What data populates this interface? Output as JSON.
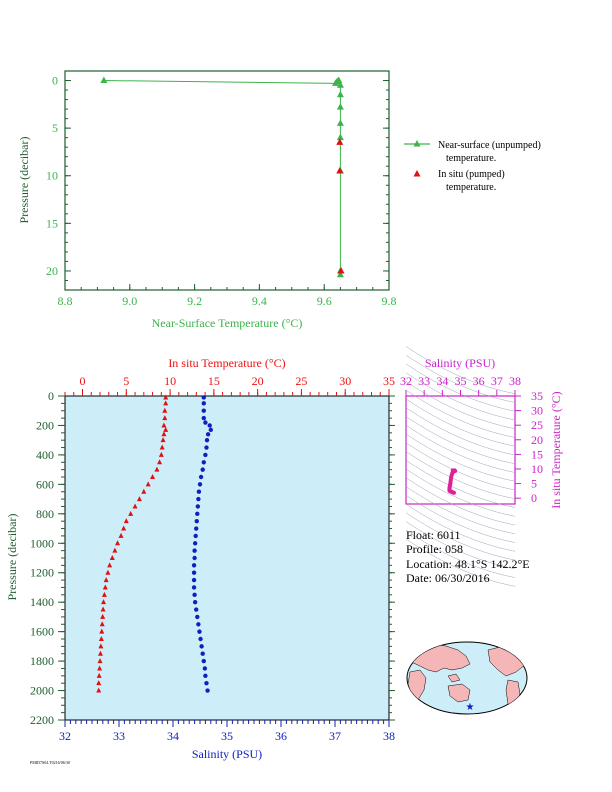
{
  "top_chart": {
    "xlabel": "Near-Surface Temperature (°C)",
    "ylabel": "Pressure (decibar)",
    "xticks": [
      "8.8",
      "9.0",
      "9.2",
      "9.4",
      "9.6",
      "9.8"
    ],
    "yticks": [
      "0",
      "5",
      "10",
      "15",
      "20"
    ],
    "legend": {
      "item1_line1": "Near-surface (unpumped)",
      "item1_line2": "temperature.",
      "item2_line1": "In situ (pumped)",
      "item2_line2": "temperature."
    }
  },
  "bottom_chart": {
    "top_xlabel": "In situ Temperature (°C)",
    "top_xticks": [
      "0",
      "5",
      "10",
      "15",
      "20",
      "25",
      "30",
      "35"
    ],
    "xlabel": "Salinity (PSU)",
    "xticks": [
      "32",
      "33",
      "34",
      "35",
      "36",
      "37",
      "38"
    ],
    "ylabel": "Pressure (decibar)",
    "yticks": [
      "0",
      "200",
      "400",
      "600",
      "800",
      "1000",
      "1200",
      "1400",
      "1600",
      "1800",
      "2000",
      "2200"
    ]
  },
  "ts_chart": {
    "xlabel": "Salinity (PSU)",
    "xticks": [
      "32",
      "33",
      "34",
      "35",
      "36",
      "37",
      "38"
    ],
    "ylabel": "In situ Temperature (°C)",
    "yticks": [
      "0",
      "5",
      "10",
      "15",
      "20",
      "25",
      "30",
      "35"
    ]
  },
  "info": {
    "float": "Float:  6011",
    "profile": "Profile:  058",
    "location": "Location:  48.1°S  142.2°E",
    "date": "Date:  06/30/2016"
  },
  "footer_code": "PMID7S04.T0216/06/30",
  "colors": {
    "near_surface": "#3cb44b",
    "in_situ_temp": "#e11111",
    "salinity": "#1020c0",
    "ts_curve": "#dd2299",
    "bottom_bg": "#cdeef8",
    "ts_axis": "#cc22cc"
  },
  "chart_data": [
    {
      "type": "line",
      "name": "near-surface temperature profile",
      "series": [
        {
          "name": "Near-surface (unpumped) temperature.",
          "points": [
            [
              8.92,
              0.0
            ],
            [
              9.635,
              0.3
            ],
            [
              9.64,
              0.1
            ],
            [
              9.645,
              0.0
            ],
            [
              9.65,
              0.5
            ],
            [
              9.65,
              1.5
            ],
            [
              9.65,
              2.8
            ],
            [
              9.65,
              4.5
            ],
            [
              9.65,
              6.0
            ],
            [
              9.65,
              9.5
            ],
            [
              9.65,
              20.0
            ],
            [
              9.65,
              20.4
            ]
          ]
        },
        {
          "name": "In situ (pumped) temperature.",
          "points": [
            [
              9.648,
              6.5
            ],
            [
              9.648,
              9.5
            ],
            [
              9.652,
              20.0
            ]
          ]
        }
      ],
      "xlim": [
        8.8,
        9.8
      ],
      "ylim": [
        22,
        -1
      ]
    },
    {
      "type": "line",
      "name": "profile",
      "series": [
        {
          "name": "In situ Temperature",
          "points": [
            [
              9.5,
              10
            ],
            [
              9.5,
              50
            ],
            [
              9.4,
              100
            ],
            [
              9.4,
              150
            ],
            [
              9.3,
              200
            ],
            [
              9.5,
              230
            ],
            [
              9.3,
              260
            ],
            [
              9.2,
              300
            ],
            [
              9.1,
              350
            ],
            [
              9.0,
              400
            ],
            [
              8.8,
              450
            ],
            [
              8.5,
              500
            ],
            [
              8.0,
              550
            ],
            [
              7.5,
              600
            ],
            [
              7.0,
              650
            ],
            [
              6.5,
              700
            ],
            [
              6.0,
              750
            ],
            [
              5.5,
              800
            ],
            [
              5.0,
              850
            ],
            [
              4.7,
              900
            ],
            [
              4.4,
              950
            ],
            [
              4.0,
              1000
            ],
            [
              3.7,
              1050
            ],
            [
              3.4,
              1100
            ],
            [
              3.1,
              1150
            ],
            [
              2.9,
              1200
            ],
            [
              2.7,
              1250
            ],
            [
              2.6,
              1300
            ],
            [
              2.5,
              1350
            ],
            [
              2.4,
              1400
            ],
            [
              2.35,
              1450
            ],
            [
              2.3,
              1500
            ],
            [
              2.25,
              1550
            ],
            [
              2.2,
              1600
            ],
            [
              2.15,
              1650
            ],
            [
              2.1,
              1700
            ],
            [
              2.05,
              1750
            ],
            [
              2.0,
              1800
            ],
            [
              1.95,
              1850
            ],
            [
              1.9,
              1900
            ],
            [
              1.85,
              1950
            ],
            [
              1.85,
              2000
            ]
          ]
        },
        {
          "name": "Salinity",
          "points": [
            [
              34.57,
              10
            ],
            [
              34.57,
              50
            ],
            [
              34.57,
              100
            ],
            [
              34.57,
              150
            ],
            [
              34.6,
              180
            ],
            [
              34.68,
              200
            ],
            [
              34.7,
              230
            ],
            [
              34.65,
              260
            ],
            [
              34.63,
              300
            ],
            [
              34.62,
              350
            ],
            [
              34.6,
              400
            ],
            [
              34.57,
              450
            ],
            [
              34.55,
              500
            ],
            [
              34.52,
              550
            ],
            [
              34.5,
              600
            ],
            [
              34.48,
              650
            ],
            [
              34.47,
              700
            ],
            [
              34.46,
              750
            ],
            [
              34.45,
              800
            ],
            [
              34.44,
              850
            ],
            [
              34.43,
              900
            ],
            [
              34.42,
              950
            ],
            [
              34.41,
              1000
            ],
            [
              34.4,
              1050
            ],
            [
              34.4,
              1100
            ],
            [
              34.39,
              1150
            ],
            [
              34.39,
              1200
            ],
            [
              34.39,
              1250
            ],
            [
              34.39,
              1300
            ],
            [
              34.4,
              1350
            ],
            [
              34.41,
              1400
            ],
            [
              34.43,
              1450
            ],
            [
              34.45,
              1500
            ],
            [
              34.47,
              1550
            ],
            [
              34.49,
              1600
            ],
            [
              34.51,
              1650
            ],
            [
              34.53,
              1700
            ],
            [
              34.55,
              1750
            ],
            [
              34.57,
              1800
            ],
            [
              34.59,
              1850
            ],
            [
              34.6,
              1900
            ],
            [
              34.62,
              1950
            ],
            [
              34.64,
              2000
            ]
          ]
        }
      ],
      "xlim_temperature": [
        -2,
        35
      ],
      "xlim_salinity": [
        32,
        38
      ],
      "ylim": [
        2200,
        0
      ]
    },
    {
      "type": "scatter",
      "name": "T-S diagram",
      "series": [
        {
          "name": "T-S",
          "points": [
            [
              34.57,
              9.5
            ],
            [
              34.6,
              9.4
            ],
            [
              34.68,
              9.5
            ],
            [
              34.7,
              9.3
            ],
            [
              34.63,
              9.2
            ],
            [
              34.6,
              9.0
            ],
            [
              34.57,
              8.8
            ],
            [
              34.55,
              8.5
            ],
            [
              34.52,
              8.0
            ],
            [
              34.5,
              7.5
            ],
            [
              34.48,
              7.0
            ],
            [
              34.47,
              6.5
            ],
            [
              34.46,
              6.0
            ],
            [
              34.45,
              5.5
            ],
            [
              34.44,
              5.0
            ],
            [
              34.43,
              4.7
            ],
            [
              34.42,
              4.4
            ],
            [
              34.41,
              4.0
            ],
            [
              34.4,
              3.7
            ],
            [
              34.4,
              3.4
            ],
            [
              34.39,
              3.1
            ],
            [
              34.39,
              2.9
            ],
            [
              34.39,
              2.7
            ],
            [
              34.4,
              2.6
            ],
            [
              34.41,
              2.5
            ],
            [
              34.43,
              2.4
            ],
            [
              34.45,
              2.35
            ],
            [
              34.47,
              2.3
            ],
            [
              34.5,
              2.2
            ],
            [
              34.53,
              2.1
            ],
            [
              34.57,
              2.0
            ],
            [
              34.6,
              1.9
            ],
            [
              34.64,
              1.85
            ]
          ]
        }
      ],
      "xlim": [
        32,
        38
      ],
      "ylim": [
        -2,
        35
      ]
    }
  ]
}
